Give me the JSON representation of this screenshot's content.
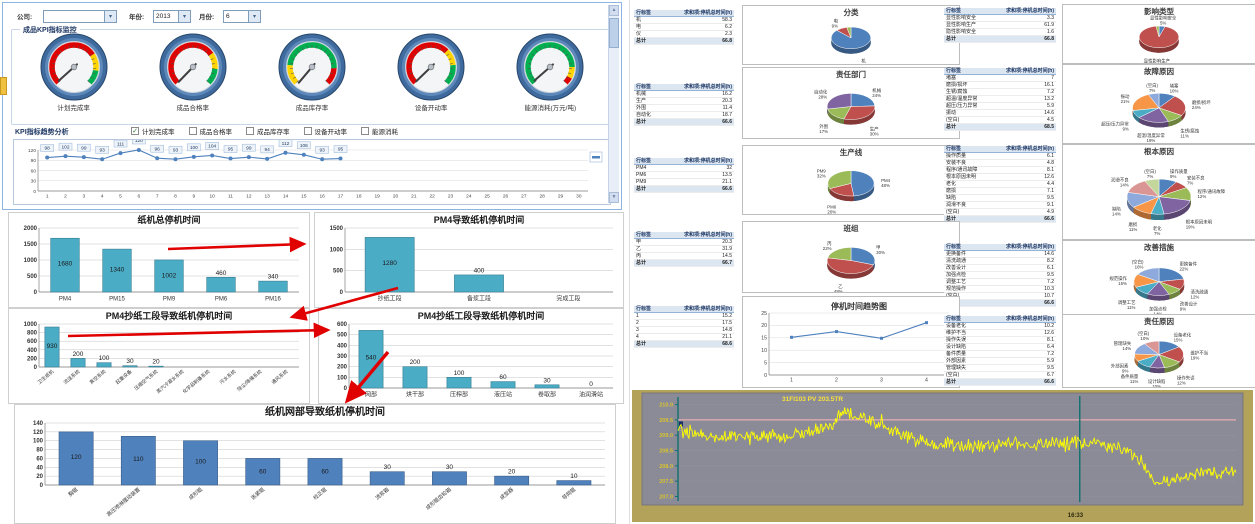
{
  "filters": {
    "company_label": "公司:",
    "company_value": "",
    "year_label": "年份:",
    "year_value": "2013",
    "month_label": "月份:",
    "month_value": "6"
  },
  "sections": {
    "gauges_title": "成品KPI指标监控",
    "trend_title": "KPI指标趋势分析"
  },
  "gauges": [
    {
      "label": "计划完成率",
      "needle": -132,
      "segments": [
        [
          "#e00000",
          -135,
          57
        ],
        [
          "#ffd400",
          57,
          99
        ],
        [
          "#00b050",
          99,
          135
        ]
      ]
    },
    {
      "label": "成品合格率",
      "needle": -136,
      "segments": [
        [
          "#e00000",
          -135,
          55
        ],
        [
          "#ffd400",
          55,
          95
        ],
        [
          "#00b050",
          95,
          135
        ]
      ]
    },
    {
      "label": "成品库存率",
      "needle": -140,
      "segments": [
        [
          "#ffd400",
          -135,
          -85
        ],
        [
          "#00b050",
          -85,
          93
        ],
        [
          "#e00000",
          93,
          135
        ]
      ]
    },
    {
      "label": "设备开动率",
      "needle": -134,
      "segments": [
        [
          "#e00000",
          -135,
          45
        ],
        [
          "#ffd400",
          45,
          85
        ],
        [
          "#00b050",
          85,
          135
        ]
      ]
    },
    {
      "label": "能源消耗(万元/吨)",
      "needle": -131,
      "segments": [
        [
          "#00b050",
          -135,
          90
        ],
        [
          "#ffd400",
          90,
          118
        ],
        [
          "#e00000",
          118,
          135
        ]
      ]
    }
  ],
  "checkboxes": [
    {
      "label": "计划完成率",
      "checked": true
    },
    {
      "label": "成品合格率",
      "checked": false
    },
    {
      "label": "成品库存率",
      "checked": false
    },
    {
      "label": "设备开动率",
      "checked": false
    },
    {
      "label": "能源消耗",
      "checked": false
    }
  ],
  "pivot": {
    "header_row": "行标签",
    "header_val": "求和项:停机总时间(h)",
    "total_label": "总计"
  },
  "chart_data": [
    {
      "id": "kpi_trend",
      "type": "line",
      "title": "",
      "x_ticks": [
        1,
        2,
        3,
        4,
        5,
        6,
        7,
        8,
        9,
        10,
        11,
        12,
        13,
        14,
        15,
        16,
        17,
        18,
        19,
        20,
        21,
        22,
        23,
        24,
        25,
        26,
        27,
        28,
        29,
        30
      ],
      "values": [
        98,
        102,
        99,
        93,
        111,
        120,
        96,
        93,
        100,
        104,
        95,
        99,
        94,
        112,
        106,
        93,
        95
      ],
      "ylim": [
        0,
        120
      ],
      "yticks": [
        0,
        30,
        60,
        90,
        120
      ],
      "color": "#4F81BD",
      "data_labels": true
    },
    {
      "id": "c1",
      "type": "bar",
      "title": "纸机总停机时间",
      "categories": [
        "PM4",
        "PM15",
        "PM9",
        "PM6",
        "PM16"
      ],
      "values": [
        1680,
        1340,
        1002,
        460,
        340
      ],
      "ylim": [
        0,
        2000
      ],
      "ytick_step": 500,
      "color": "#4BACC6"
    },
    {
      "id": "c2",
      "type": "bar",
      "title": "PM4导致纸机停机时间",
      "categories": [
        "抄纸工段",
        "备浆工段",
        "完成工段"
      ],
      "values": [
        1280,
        400,
        0
      ],
      "ylim": [
        0,
        1500
      ],
      "ytick_step": 500,
      "color": "#4BACC6"
    },
    {
      "id": "c3",
      "type": "bar",
      "title": "PM4抄纸工段导致纸机停机时间",
      "rotate": true,
      "categories": [
        "卫生纸机",
        "流送系统",
        "真空系统",
        "起重设备",
        "压缩空气系统",
        "蒸汽冷凝水系统",
        "化学品制备系统",
        "污水系统",
        "除尘/降噪系统",
        "通风系统"
      ],
      "values": [
        930,
        200,
        100,
        30,
        20,
        0,
        0,
        0,
        0,
        0
      ],
      "ylim": [
        0,
        1000
      ],
      "ytick_step": 200,
      "color": "#4BACC6"
    },
    {
      "id": "c4",
      "type": "bar",
      "title": "PM4抄纸工段导致纸机停机时间",
      "show_zero": true,
      "categories": [
        "网部",
        "烘干部",
        "压榨部",
        "液压站",
        "卷取部",
        "油润滑站"
      ],
      "values": [
        540,
        200,
        100,
        60,
        30,
        0
      ],
      "ylim": [
        0,
        600
      ],
      "ytick_step": 100,
      "color": "#4BACC6"
    },
    {
      "id": "c5",
      "type": "bar",
      "title": "纸机网部导致纸机停机时间",
      "rotate": true,
      "categories": [
        "胸辊",
        "高压喷淋摆动装置",
        "成形辊",
        "张紧辊",
        "校正辊",
        "流浆箱",
        "成形辊齿轮箱",
        "成型器",
        "导网辊"
      ],
      "values": [
        120,
        110,
        100,
        60,
        60,
        30,
        30,
        20,
        10
      ],
      "ylim": [
        0,
        140
      ],
      "ytick_step": 20,
      "color": "#4F81BD"
    },
    {
      "id": "fenlei",
      "type": "pie",
      "title": "分类",
      "categories": [
        "机",
        "电",
        "仪"
      ],
      "values": [
        58.3,
        6.2,
        2.3
      ]
    },
    {
      "id": "yingxiang",
      "type": "pie",
      "title": "影响类型",
      "categories": [
        "显性影响安全",
        "显性影响生产",
        "隐性影响安全"
      ],
      "values": [
        3.3,
        61.9,
        1.6
      ]
    },
    {
      "id": "bumen",
      "type": "pie",
      "title": "责任部门",
      "categories": [
        "机械",
        "生产",
        "外围",
        "自动化"
      ],
      "values": [
        16.2,
        20.3,
        11.4,
        18.7
      ]
    },
    {
      "id": "guzhang",
      "type": "pie",
      "title": "故障原因",
      "categories": [
        "堵塞",
        "磨损/损坏",
        "生锈/腐蚀",
        "超温/温度异常",
        "超压/压力异常",
        "振动",
        "(空白)"
      ],
      "values": [
        7.0,
        16.1,
        7.2,
        13.2,
        5.9,
        14.6,
        4.5
      ]
    },
    {
      "id": "xian",
      "type": "pie",
      "title": "生产线",
      "categories": [
        "PM4",
        "PM6",
        "PM9"
      ],
      "values": [
        32.0,
        13.5,
        21.1
      ]
    },
    {
      "id": "genben",
      "type": "pie",
      "title": "根本原因",
      "categories": [
        "操作质量",
        "安装不良",
        "程序/通讯故障",
        "根本原因未明",
        "老化",
        "磨损",
        "缺陷",
        "润滑不良",
        "(空白)"
      ],
      "values": [
        6.1,
        4.8,
        8.1,
        12.6,
        4.4,
        7.1,
        9.5,
        9.1,
        4.9
      ]
    },
    {
      "id": "banzu",
      "type": "pie",
      "title": "班组",
      "categories": [
        "甲",
        "乙",
        "丙"
      ],
      "values": [
        20.3,
        31.9,
        14.5
      ]
    },
    {
      "id": "gaishan",
      "type": "pie",
      "title": "改善措施",
      "categories": [
        "更换备件",
        "清洗疏通",
        "改善设计",
        "加强点检",
        "调整工艺",
        "规范操作",
        "(空白)"
      ],
      "values": [
        14.6,
        8.2,
        6.1,
        9.5,
        7.2,
        10.3,
        10.7
      ]
    },
    {
      "id": "trend",
      "type": "line",
      "title": "停机时间趋势图",
      "x_ticks": [
        1,
        2,
        3,
        4
      ],
      "values": [
        15.2,
        17.5,
        14.8,
        21.1
      ],
      "ylim": [
        0,
        25
      ],
      "yticks": [
        0,
        5,
        10,
        15,
        20,
        25
      ],
      "color": "#4F81BD",
      "data_labels": false
    },
    {
      "id": "zeyuan",
      "type": "pie",
      "title": "责任原因",
      "categories": [
        "设备老化",
        "维护不当",
        "操作失误",
        "设计缺陷",
        "备件质量",
        "外部因素",
        "管理缺失",
        "(空白)"
      ],
      "values": [
        10.2,
        12.6,
        8.1,
        6.4,
        7.2,
        5.9,
        9.5,
        6.7
      ]
    },
    {
      "id": "control",
      "type": "control",
      "title": "31FI103 PV  203.5TR",
      "x_label": "16:33",
      "yticks": [
        207.0,
        207.5,
        208.0,
        208.5,
        209.0,
        209.5,
        210.0
      ],
      "ylim": [
        206.95,
        210.15
      ],
      "ref_line": 209.5,
      "cursor_frac": 0.72,
      "noise": 0.18,
      "line_color": "#ffff00",
      "bg": "#8b8b97",
      "frame": "#b3a259",
      "waypoints": [
        [
          0,
          209.15
        ],
        [
          0.06,
          208.95
        ],
        [
          0.14,
          209.0
        ],
        [
          0.2,
          208.95
        ],
        [
          0.27,
          209.3
        ],
        [
          0.3,
          209.8
        ],
        [
          0.33,
          209.55
        ],
        [
          0.38,
          209.2
        ],
        [
          0.44,
          208.75
        ],
        [
          0.52,
          208.65
        ],
        [
          0.6,
          208.7
        ],
        [
          0.68,
          208.75
        ],
        [
          0.74,
          208.8
        ],
        [
          0.8,
          208.55
        ],
        [
          0.83,
          208.2
        ],
        [
          0.855,
          207.35
        ],
        [
          0.88,
          207.5
        ],
        [
          0.92,
          207.75
        ],
        [
          0.96,
          207.85
        ],
        [
          1,
          207.75
        ]
      ]
    }
  ],
  "pie_colors": [
    "#4F81BD",
    "#C0504D",
    "#9BBB59",
    "#8064A2",
    "#4BACC6",
    "#F79646",
    "#8EA9DB",
    "#D99694",
    "#C3D69B"
  ]
}
